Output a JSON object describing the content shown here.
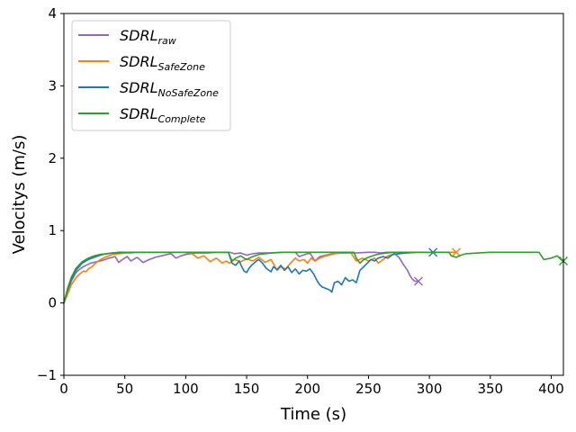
{
  "chart_data": {
    "type": "line",
    "xlabel": "Time (s)",
    "ylabel": "Velocitys (m/s)",
    "xlim": [
      0,
      410
    ],
    "ylim": [
      -1,
      4
    ],
    "xticks": [
      0,
      50,
      100,
      150,
      200,
      250,
      300,
      350,
      400
    ],
    "yticks": [
      -1,
      0,
      1,
      2,
      3,
      4
    ],
    "grid": false,
    "legend_position": "top-left",
    "end_marker": "x",
    "series": [
      {
        "name": "SDRL",
        "subscript": "raw",
        "color": "#9467bd",
        "x": [
          0,
          3,
          6,
          10,
          14,
          18,
          22,
          27,
          32,
          37,
          42,
          45,
          48,
          52,
          55,
          60,
          65,
          70,
          75,
          80,
          85,
          88,
          92,
          96,
          100,
          104,
          108,
          112,
          118,
          124,
          130,
          136,
          140,
          145,
          150,
          155,
          160,
          170,
          180,
          190,
          193,
          198,
          202,
          206,
          210,
          220,
          230,
          240,
          250,
          255,
          260,
          265,
          270,
          275,
          278,
          282,
          284,
          286,
          288,
          291
        ],
        "y": [
          0.0,
          0.15,
          0.3,
          0.42,
          0.48,
          0.52,
          0.55,
          0.57,
          0.59,
          0.62,
          0.64,
          0.56,
          0.6,
          0.64,
          0.58,
          0.63,
          0.56,
          0.6,
          0.63,
          0.65,
          0.67,
          0.68,
          0.62,
          0.65,
          0.67,
          0.68,
          0.69,
          0.69,
          0.69,
          0.7,
          0.7,
          0.7,
          0.68,
          0.69,
          0.66,
          0.68,
          0.69,
          0.69,
          0.7,
          0.7,
          0.64,
          0.67,
          0.69,
          0.58,
          0.64,
          0.68,
          0.69,
          0.69,
          0.7,
          0.7,
          0.69,
          0.7,
          0.7,
          0.63,
          0.55,
          0.45,
          0.38,
          0.33,
          0.3,
          0.3
        ]
      },
      {
        "name": "SDRL",
        "subscript": "SafeZone",
        "color": "#ff7f0e",
        "x": [
          0,
          3,
          6,
          10,
          13,
          16,
          18,
          20,
          23,
          26,
          30,
          35,
          40,
          45,
          50,
          55,
          60,
          70,
          80,
          90,
          100,
          105,
          110,
          115,
          120,
          125,
          130,
          133,
          136,
          140,
          145,
          150,
          155,
          160,
          165,
          170,
          175,
          178,
          182,
          186,
          190,
          193,
          197,
          200,
          203,
          206,
          210,
          215,
          220,
          225,
          230,
          233,
          236,
          240,
          245,
          250,
          255,
          258,
          262,
          266,
          270,
          280,
          290,
          300,
          310,
          315,
          318,
          320,
          322
        ],
        "y": [
          0.0,
          0.12,
          0.25,
          0.35,
          0.4,
          0.44,
          0.43,
          0.47,
          0.5,
          0.55,
          0.6,
          0.64,
          0.67,
          0.68,
          0.69,
          0.69,
          0.7,
          0.7,
          0.7,
          0.7,
          0.7,
          0.68,
          0.62,
          0.65,
          0.57,
          0.62,
          0.55,
          0.58,
          0.55,
          0.6,
          0.57,
          0.61,
          0.58,
          0.63,
          0.56,
          0.6,
          0.45,
          0.5,
          0.47,
          0.55,
          0.62,
          0.58,
          0.6,
          0.55,
          0.62,
          0.58,
          0.62,
          0.65,
          0.67,
          0.69,
          0.7,
          0.7,
          0.68,
          0.58,
          0.62,
          0.58,
          0.62,
          0.55,
          0.6,
          0.65,
          0.67,
          0.69,
          0.7,
          0.7,
          0.7,
          0.7,
          0.7,
          0.7,
          0.7
        ]
      },
      {
        "name": "SDRL",
        "subscript": "NoSafeZone",
        "color": "#1f77b4",
        "x": [
          0,
          3,
          6,
          10,
          15,
          20,
          25,
          30,
          35,
          40,
          45,
          50,
          60,
          70,
          80,
          90,
          100,
          110,
          120,
          130,
          135,
          138,
          141,
          144,
          146,
          148,
          150,
          152,
          154,
          156,
          158,
          160,
          163,
          166,
          170,
          172,
          175,
          178,
          181,
          184,
          187,
          190,
          193,
          196,
          199,
          202,
          205,
          208,
          210,
          212,
          215,
          218,
          220,
          222,
          225,
          228,
          231,
          234,
          237,
          240,
          243,
          246,
          249,
          252,
          255,
          258,
          262,
          266,
          270,
          275,
          280,
          290,
          300,
          303
        ],
        "y": [
          0.0,
          0.18,
          0.32,
          0.45,
          0.55,
          0.6,
          0.63,
          0.66,
          0.68,
          0.69,
          0.7,
          0.7,
          0.7,
          0.7,
          0.7,
          0.7,
          0.7,
          0.7,
          0.7,
          0.7,
          0.7,
          0.55,
          0.52,
          0.58,
          0.5,
          0.44,
          0.42,
          0.48,
          0.52,
          0.55,
          0.58,
          0.6,
          0.55,
          0.48,
          0.43,
          0.5,
          0.46,
          0.52,
          0.45,
          0.5,
          0.42,
          0.47,
          0.4,
          0.45,
          0.44,
          0.47,
          0.4,
          0.3,
          0.25,
          0.22,
          0.2,
          0.18,
          0.15,
          0.28,
          0.3,
          0.25,
          0.35,
          0.3,
          0.32,
          0.28,
          0.45,
          0.5,
          0.55,
          0.6,
          0.58,
          0.62,
          0.64,
          0.62,
          0.67,
          0.68,
          0.69,
          0.7,
          0.7,
          0.7
        ]
      },
      {
        "name": "SDRL",
        "subscript": "Complete",
        "color": "#2ca02c",
        "x": [
          0,
          3,
          6,
          10,
          15,
          20,
          25,
          30,
          35,
          40,
          45,
          50,
          60,
          70,
          80,
          90,
          100,
          110,
          120,
          130,
          135,
          138,
          141,
          145,
          150,
          155,
          160,
          170,
          180,
          190,
          200,
          210,
          220,
          230,
          238,
          240,
          243,
          246,
          250,
          255,
          260,
          265,
          270,
          280,
          290,
          300,
          310,
          316,
          318,
          322,
          326,
          330,
          340,
          350,
          360,
          370,
          380,
          390,
          394,
          400,
          405,
          408,
          410
        ],
        "y": [
          0.0,
          0.2,
          0.35,
          0.48,
          0.57,
          0.62,
          0.65,
          0.67,
          0.68,
          0.69,
          0.69,
          0.7,
          0.7,
          0.7,
          0.7,
          0.7,
          0.7,
          0.7,
          0.7,
          0.7,
          0.7,
          0.58,
          0.62,
          0.65,
          0.6,
          0.64,
          0.67,
          0.69,
          0.7,
          0.7,
          0.7,
          0.7,
          0.7,
          0.7,
          0.7,
          0.62,
          0.55,
          0.6,
          0.63,
          0.66,
          0.68,
          0.69,
          0.7,
          0.7,
          0.7,
          0.7,
          0.7,
          0.7,
          0.65,
          0.63,
          0.66,
          0.68,
          0.69,
          0.7,
          0.7,
          0.7,
          0.7,
          0.7,
          0.6,
          0.62,
          0.65,
          0.6,
          0.58
        ]
      }
    ]
  }
}
